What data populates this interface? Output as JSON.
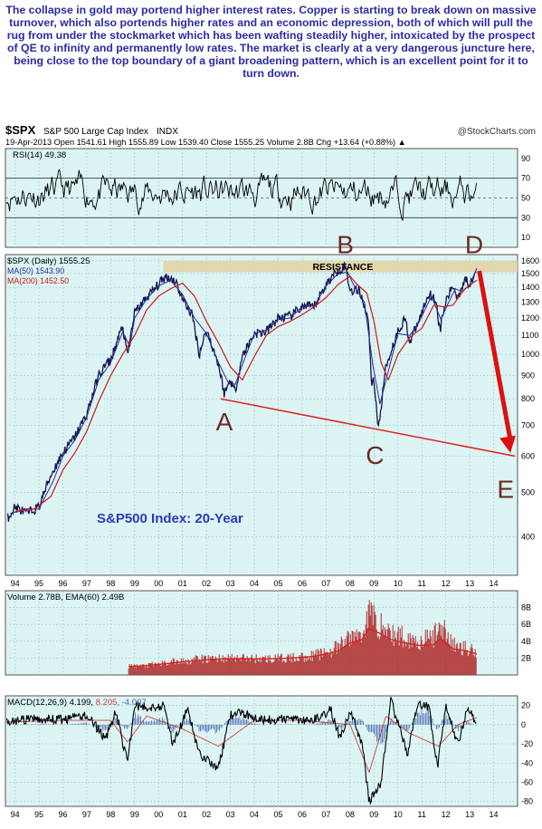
{
  "caption": "The collapse in gold may portend higher interest rates. Copper is starting to break down on massive turnover, which also portends higher rates and an economic depression, both of which will pull the rug from under the stockmarket which has been wafting steadily higher, intoxicated by the prospect of QE to infinity and permanently low rates.  The market is clearly at a very dangerous juncture here, being close to the top boundary of a giant broadening pattern, which is an excellent point for it to turn down.",
  "header": {
    "symbol": "$SPX",
    "name": "S&P 500 Large Cap Index",
    "exchange": "INDX",
    "source": "@StockCharts.com",
    "quote": "19-Apr-2013   Open 1541.61  High 1555.89  Low 1539.40  Close 1555.25  Volume 2.8B  Chg +13.64 (+0.88%) ▲"
  },
  "colors": {
    "panel_bg": "#dcf4f4",
    "price": "#141450",
    "ma50": "#2a2a9a",
    "ma200": "#d01818",
    "trend": "#e02020",
    "arrow": "#dd1111",
    "letters": "#6a2c22",
    "resistance": "#e2d4a6",
    "volume": "#b03030",
    "subtitle": "#2e3ab8",
    "macd_signal": "#d04040",
    "macd_hist": "#4c6cb0"
  },
  "chart_data": [
    {
      "type": "line",
      "panel": "RSI",
      "legend": "RSI(14) 49.38",
      "y_ticks": [
        10,
        30,
        50,
        70,
        90
      ],
      "ylim": [
        0,
        100
      ],
      "levels": [
        30,
        50,
        70
      ],
      "last_value": 49.38
    },
    {
      "type": "line",
      "panel": "price",
      "title": "S&P500 Index: 20-Year",
      "log_scale": true,
      "ylim": [
        330,
        1650
      ],
      "y_ticks": [
        400,
        500,
        600,
        700,
        800,
        900,
        1000,
        1100,
        1200,
        1300,
        1400,
        1500,
        1600
      ],
      "x_ticks": [
        "94",
        "95",
        "96",
        "97",
        "98",
        "99",
        "00",
        "01",
        "02",
        "03",
        "04",
        "05",
        "06",
        "07",
        "08",
        "09",
        "10",
        "11",
        "12",
        "13",
        "14"
      ],
      "xlim": [
        1993.6,
        2015.0
      ],
      "legend": [
        "$SPX (Daily) 1555.25",
        "MA(50) 1543.90",
        "MA(200) 1452.50"
      ],
      "series": [
        {
          "name": "$SPX (Daily) 1555.25",
          "x": [
            1993.7,
            1994.0,
            1994.5,
            1995.0,
            1995.5,
            1996.0,
            1996.5,
            1997.0,
            1997.5,
            1997.8,
            1998.0,
            1998.5,
            1998.7,
            1999.0,
            1999.5,
            2000.0,
            2000.3,
            2000.7,
            2001.0,
            2001.4,
            2001.7,
            2002.0,
            2002.5,
            2002.75,
            2003.0,
            2003.2,
            2003.5,
            2004.0,
            2004.5,
            2005.0,
            2005.5,
            2006.0,
            2006.5,
            2007.0,
            2007.4,
            2007.8,
            2008.0,
            2008.4,
            2008.75,
            2008.9,
            2009.0,
            2009.19,
            2009.5,
            2010.0,
            2010.3,
            2010.5,
            2010.9,
            2011.3,
            2011.6,
            2011.75,
            2012.0,
            2012.3,
            2012.5,
            2012.8,
            2013.0,
            2013.3
          ],
          "values": [
            440,
            465,
            450,
            465,
            545,
            610,
            660,
            740,
            900,
            950,
            970,
            1150,
            990,
            1230,
            1330,
            1420,
            1480,
            1450,
            1320,
            1220,
            1000,
            1130,
            950,
            820,
            880,
            830,
            990,
            1110,
            1120,
            1200,
            1210,
            1270,
            1270,
            1420,
            1510,
            1560,
            1380,
            1380,
            1200,
            870,
            880,
            680,
            940,
            1120,
            1200,
            1060,
            1190,
            1360,
            1310,
            1120,
            1300,
            1410,
            1330,
            1460,
            1420,
            1555
          ]
        },
        {
          "name": "MA(50) 1543.90",
          "x": [
            1993.8,
            1994.5,
            1995.0,
            1995.6,
            1996.0,
            1996.5,
            1997.0,
            1997.5,
            1998.0,
            1998.5,
            1998.8,
            1999.0,
            1999.5,
            2000.0,
            2000.5,
            2001.0,
            2001.5,
            2002.0,
            2002.5,
            2002.9,
            2003.2,
            2003.6,
            2004.0,
            2004.5,
            2005.0,
            2005.5,
            2006.0,
            2006.5,
            2007.0,
            2007.5,
            2007.9,
            2008.2,
            2008.6,
            2008.95,
            2009.25,
            2009.6,
            2010.0,
            2010.5,
            2010.9,
            2011.4,
            2011.8,
            2012.0,
            2012.4,
            2012.7,
            2013.0,
            2013.3
          ],
          "values": [
            450,
            460,
            460,
            530,
            600,
            650,
            730,
            880,
            960,
            1120,
            1040,
            1200,
            1320,
            1410,
            1450,
            1350,
            1200,
            1110,
            960,
            870,
            860,
            980,
            1110,
            1130,
            1190,
            1200,
            1270,
            1275,
            1410,
            1500,
            1510,
            1400,
            1300,
            950,
            780,
            920,
            1110,
            1100,
            1180,
            1340,
            1190,
            1260,
            1390,
            1370,
            1420,
            1540
          ]
        },
        {
          "name": "MA(200) 1452.50",
          "x": [
            1994.0,
            1994.8,
            1995.5,
            1996.0,
            1996.5,
            1997.0,
            1997.5,
            1998.0,
            1998.5,
            1999.0,
            1999.5,
            2000.0,
            2000.5,
            2001.0,
            2001.5,
            2002.0,
            2002.5,
            2003.0,
            2003.5,
            2004.0,
            2004.5,
            2005.0,
            2005.5,
            2006.0,
            2006.5,
            2007.0,
            2007.5,
            2008.0,
            2008.3,
            2008.7,
            2009.0,
            2009.3,
            2009.6,
            2010.0,
            2010.5,
            2011.0,
            2011.5,
            2011.9,
            2012.3,
            2012.8,
            2013.3
          ],
          "values": [
            455,
            460,
            490,
            560,
            610,
            680,
            790,
            900,
            1000,
            1100,
            1250,
            1340,
            1390,
            1430,
            1340,
            1180,
            1060,
            940,
            880,
            990,
            1100,
            1150,
            1180,
            1220,
            1270,
            1330,
            1420,
            1480,
            1420,
            1360,
            1180,
            960,
            880,
            1000,
            1090,
            1140,
            1280,
            1270,
            1280,
            1390,
            1452
          ]
        }
      ],
      "annotations": {
        "points": [
          {
            "label": "A",
            "x": 2002.75,
            "y": 790
          },
          {
            "label": "B",
            "x": 2007.8,
            "y": 1560
          },
          {
            "label": "C",
            "x": 2009.19,
            "y": 680
          },
          {
            "label": "D",
            "x": 2013.3,
            "y": 1560
          },
          {
            "label": "E",
            "x": 2014.8,
            "y": 600
          }
        ],
        "resistance_label": "RESISTANCE",
        "resistance_band": [
          1510,
          1600
        ],
        "support_line": {
          "x": [
            2002.6,
            2014.9
          ],
          "y": [
            800,
            600
          ]
        },
        "arrow": {
          "x": [
            2013.4,
            2014.7
          ],
          "y": [
            1520,
            610
          ]
        }
      }
    },
    {
      "type": "bar",
      "panel": "volume",
      "legend": "Volume 2.78B, EMA(60) 2.49B",
      "unit": "shares (billions)",
      "ylim": [
        0,
        10
      ],
      "y_ticks": [
        "2B",
        "4B",
        "6B",
        "8B"
      ],
      "x": [
        1998.75,
        1999.5,
        2000.5,
        2001.5,
        2002.5,
        2003.5,
        2004.5,
        2005.5,
        2006.5,
        2007.5,
        2008.0,
        2008.5,
        2008.8,
        2009.2,
        2009.7,
        2010.3,
        2010.9,
        2011.5,
        2011.8,
        2012.3,
        2012.8,
        2013.3
      ],
      "values": [
        1.0,
        1.1,
        1.5,
        1.8,
        2.0,
        2.0,
        1.9,
        2.0,
        2.3,
        3.2,
        4.5,
        4.8,
        7.5,
        6.0,
        4.8,
        4.5,
        4.0,
        4.5,
        6.0,
        3.5,
        3.2,
        2.8
      ],
      "ema": [
        1.0,
        1.1,
        1.4,
        1.7,
        1.9,
        1.9,
        1.9,
        2.0,
        2.2,
        2.8,
        3.8,
        4.2,
        5.5,
        5.0,
        4.2,
        3.8,
        3.5,
        3.6,
        4.3,
        3.1,
        2.9,
        2.49
      ]
    },
    {
      "type": "line",
      "panel": "MACD",
      "legend": [
        "MACD(12,26,9) 4.199",
        "8.205",
        "-4.007"
      ],
      "ylim": [
        -85,
        30
      ],
      "y_ticks": [
        20,
        0,
        -20,
        -40,
        -60,
        -80
      ],
      "x_ticks": [
        "94",
        "95",
        "96",
        "97",
        "98",
        "99",
        "00",
        "01",
        "02",
        "03",
        "04",
        "05",
        "06",
        "07",
        "08",
        "09",
        "10",
        "11",
        "12",
        "13",
        "14"
      ],
      "series": [
        {
          "name": "MACD(12,26,9) 4.199",
          "x": [
            1993.7,
            1995.0,
            1996.0,
            1997.0,
            1997.8,
            1998.2,
            1998.7,
            1999.0,
            1999.5,
            2000.2,
            2000.6,
            2001.2,
            2001.7,
            2002.5,
            2003.0,
            2003.5,
            2004.5,
            2005.5,
            2006.5,
            2007.2,
            2007.6,
            2008.0,
            2008.5,
            2008.8,
            2009.3,
            2009.7,
            2010.4,
            2010.8,
            2011.3,
            2011.65,
            2012.0,
            2012.5,
            2012.9,
            2013.3
          ],
          "values": [
            3,
            6,
            5,
            10,
            -15,
            15,
            -40,
            20,
            18,
            20,
            -20,
            15,
            -30,
            -45,
            10,
            12,
            5,
            6,
            5,
            15,
            -15,
            15,
            -20,
            -80,
            -60,
            25,
            -30,
            20,
            18,
            -45,
            20,
            -20,
            15,
            4.199
          ]
        },
        {
          "name": "8.205",
          "x": [
            1993.7,
            1996.0,
            1998.0,
            1998.7,
            1999.5,
            2001.0,
            2002.5,
            2004.0,
            2006.0,
            2008.0,
            2008.8,
            2009.5,
            2010.5,
            2011.7,
            2012.5,
            2013.3
          ],
          "values": [
            3,
            5,
            5,
            -20,
            10,
            -5,
            -25,
            5,
            5,
            0,
            -55,
            10,
            -10,
            -25,
            0,
            8.205
          ]
        },
        {
          "name": "-4.007",
          "x": [
            1993.7,
            2013.3
          ],
          "values": [
            0,
            -4.007
          ]
        }
      ]
    }
  ]
}
